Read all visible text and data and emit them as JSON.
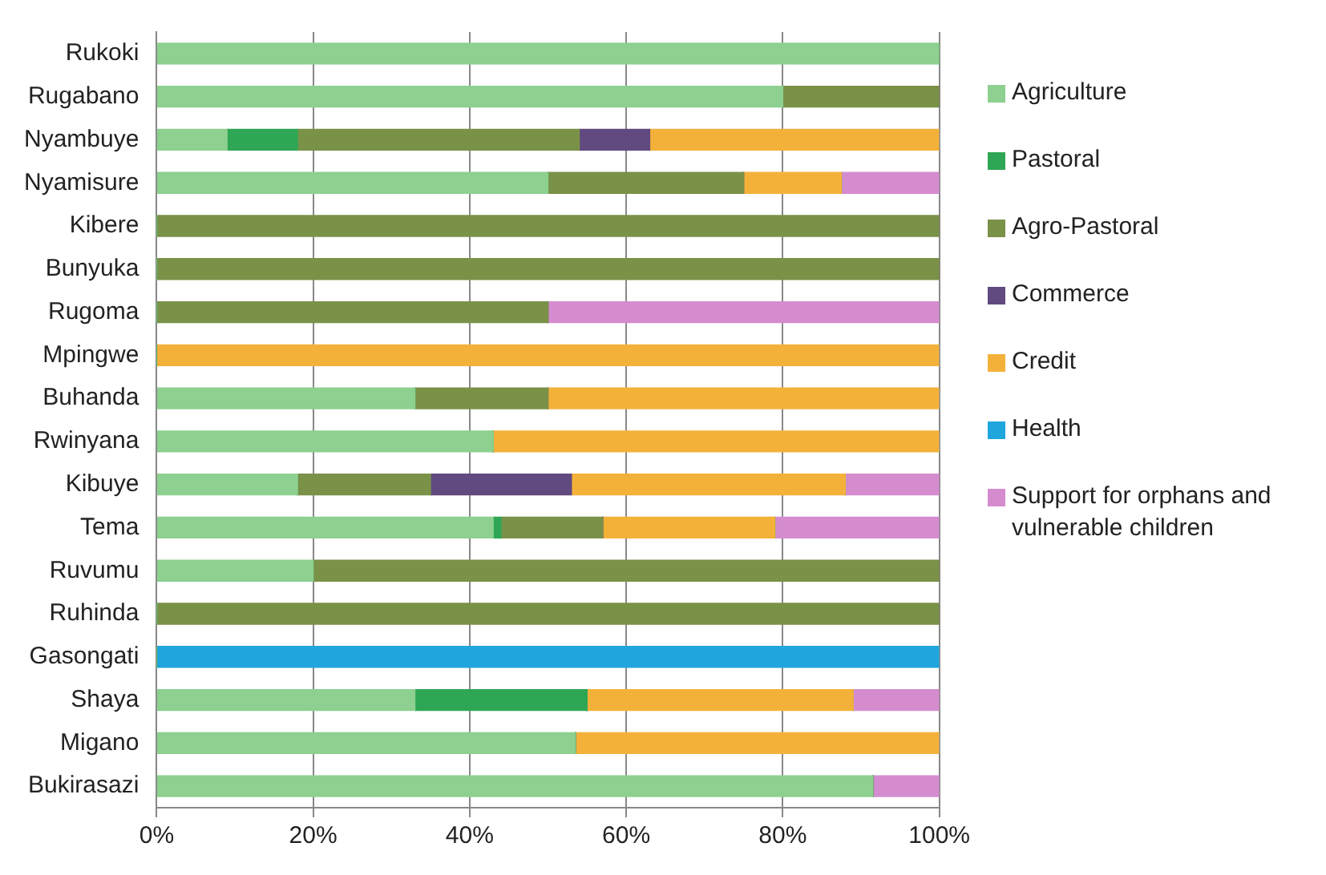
{
  "chart_data": {
    "type": "bar",
    "orientation": "horizontal",
    "stacked": true,
    "categories": [
      "Rukoki",
      "Rugabano",
      "Nyambuye",
      "Nyamisure",
      "Kibere",
      "Bunyuka",
      "Rugoma",
      "Mpingwe",
      "Buhanda",
      "Rwinyana",
      "Kibuye",
      "Tema",
      "Ruvumu",
      "Ruhinda",
      "Gasongati",
      "Shaya",
      "Migano",
      "Bukirasazi"
    ],
    "series": [
      {
        "name": "Agriculture",
        "color": "#8dd08f",
        "values": [
          100,
          80,
          9,
          50,
          0,
          0,
          0,
          0,
          33,
          43,
          18,
          43,
          20,
          0,
          0,
          33,
          53.5,
          91.5
        ]
      },
      {
        "name": "Pastoral",
        "color": "#2ea655",
        "values": [
          0,
          0,
          9,
          0,
          0,
          0,
          0,
          0,
          0,
          0,
          0,
          1,
          0,
          0,
          0,
          22,
          0,
          0
        ]
      },
      {
        "name": "Agro-Pastoral",
        "color": "#7a9148",
        "values": [
          0,
          20,
          36,
          25,
          100,
          100,
          50,
          0,
          17,
          0,
          17,
          13,
          80,
          100,
          0,
          0,
          0,
          0
        ]
      },
      {
        "name": "Commerce",
        "color": "#614a7f",
        "values": [
          0,
          0,
          9,
          0,
          0,
          0,
          0,
          0,
          0,
          0,
          18,
          0,
          0,
          0,
          0,
          0,
          0,
          0
        ]
      },
      {
        "name": "Credit",
        "color": "#f4b13a",
        "values": [
          0,
          0,
          37,
          12.5,
          0,
          0,
          0,
          100,
          50,
          57,
          35,
          22,
          0,
          0,
          0,
          34,
          46.5,
          0
        ]
      },
      {
        "name": "Health",
        "color": "#1ea6dd",
        "values": [
          0,
          0,
          0,
          0,
          0,
          0,
          0,
          0,
          0,
          0,
          0,
          0,
          0,
          0,
          100,
          0,
          0,
          0
        ]
      },
      {
        "name": "Support for orphans and vulnerable children",
        "color": "#d58ccf",
        "values": [
          0,
          0,
          0,
          12.5,
          0,
          0,
          50,
          0,
          0,
          0,
          12,
          21,
          0,
          0,
          0,
          11,
          0,
          8.5
        ]
      }
    ],
    "xlim": [
      0,
      100
    ],
    "xticks": [
      {
        "value": 0,
        "label": "0%"
      },
      {
        "value": 20,
        "label": "20%"
      },
      {
        "value": 40,
        "label": "40%"
      },
      {
        "value": 60,
        "label": "60%"
      },
      {
        "value": 80,
        "label": "80%"
      },
      {
        "value": 100,
        "label": "100%"
      }
    ],
    "grid": "x",
    "legend": "right"
  }
}
